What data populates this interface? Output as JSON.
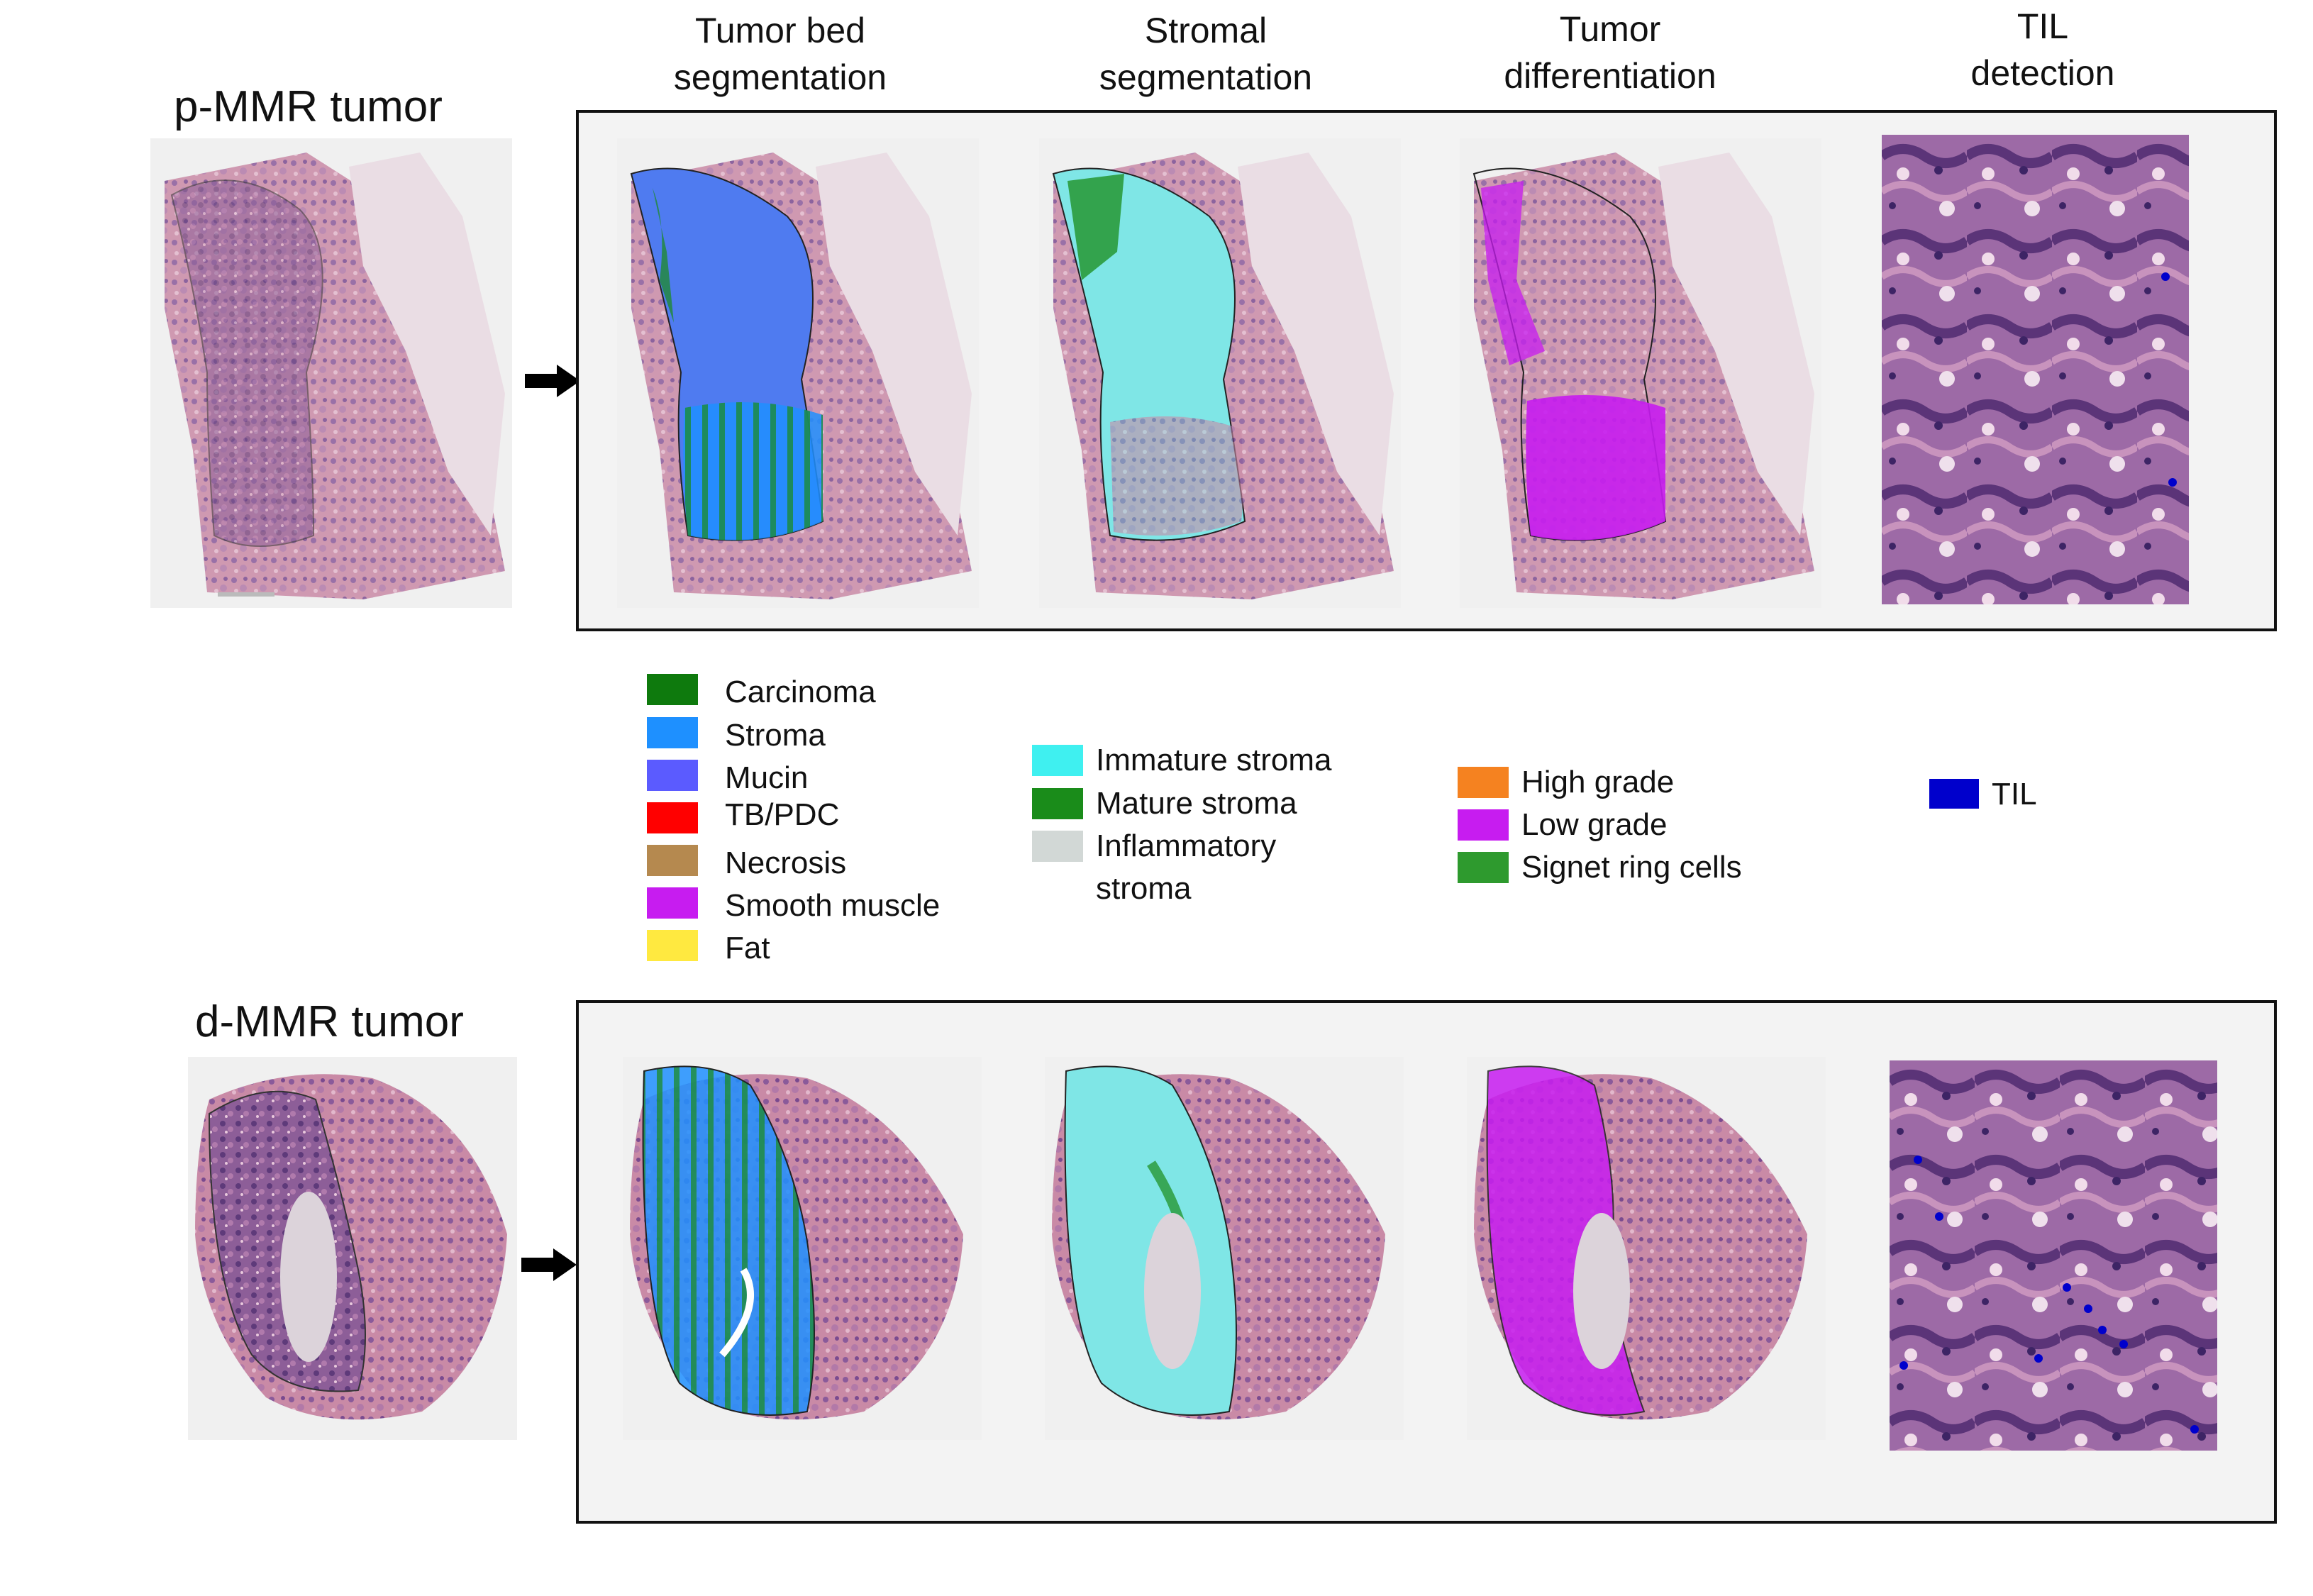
{
  "figure": {
    "column_headers": [
      {
        "line1": "Tumor bed",
        "line2": "segmentation"
      },
      {
        "line1": "Stromal",
        "line2": "segmentation"
      },
      {
        "line1": "Tumor",
        "line2": "differentiation"
      },
      {
        "line1": "TIL",
        "line2": "detection"
      }
    ],
    "rows": [
      {
        "label": "p-MMR tumor"
      },
      {
        "label": "d-MMR tumor"
      }
    ],
    "legends": {
      "tumor_bed": [
        {
          "label": "Carcinoma",
          "color": "#0e7a0d"
        },
        {
          "label": "Stroma",
          "color": "#1e90ff"
        },
        {
          "label": "Mucin",
          "color": "#5b5bff"
        },
        {
          "label": "TB/PDC",
          "color": "#ff0000"
        },
        {
          "label": "Necrosis",
          "color": "#b5894f"
        },
        {
          "label": "Smooth muscle",
          "color": "#c71cf0"
        },
        {
          "label": "Fat",
          "color": "#ffe940"
        }
      ],
      "stromal": [
        {
          "label": "Immature stroma",
          "color": "#3ff0f0"
        },
        {
          "label": "Mature stroma",
          "color": "#1a8c1a"
        },
        {
          "label": "Inflammatory",
          "label2": "stroma",
          "color": "#d2d8d6"
        }
      ],
      "differentiation": [
        {
          "label": "High grade",
          "color": "#f58220"
        },
        {
          "label": "Low grade",
          "color": "#c71cf0"
        },
        {
          "label": "Signet ring cells",
          "color": "#2e9a2e"
        }
      ],
      "til": [
        {
          "label": "TIL",
          "color": "#0000cc"
        }
      ]
    }
  }
}
